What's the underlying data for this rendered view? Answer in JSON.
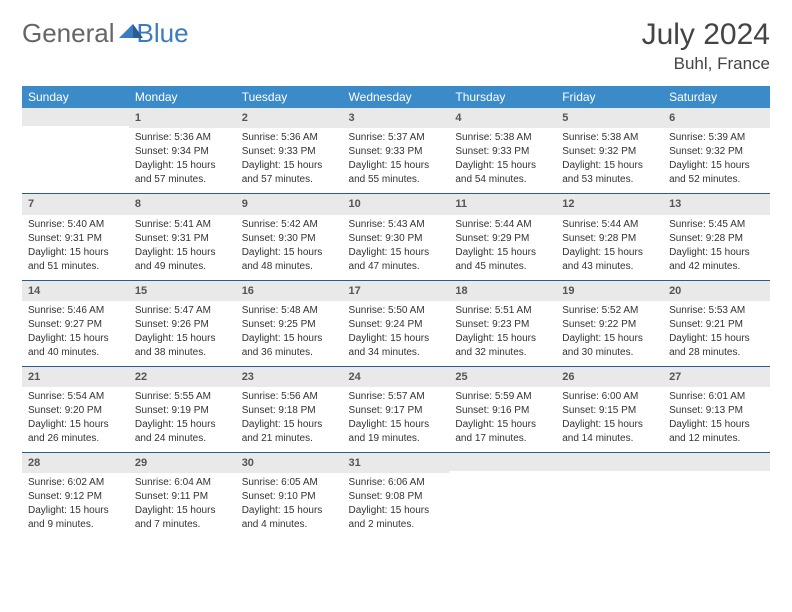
{
  "brand": {
    "part1": "General",
    "part2": "Blue"
  },
  "title": "July 2024",
  "location": "Buhl, France",
  "colors": {
    "header_bg": "#3b8bc9",
    "header_text": "#ffffff",
    "daynum_bg": "#e9e9e9",
    "row_border": "#2a5c91",
    "brand_blue": "#3b7bbf"
  },
  "weekdays": [
    "Sunday",
    "Monday",
    "Tuesday",
    "Wednesday",
    "Thursday",
    "Friday",
    "Saturday"
  ],
  "weeks": [
    [
      null,
      {
        "n": "1",
        "sunrise": "Sunrise: 5:36 AM",
        "sunset": "Sunset: 9:34 PM",
        "day1": "Daylight: 15 hours",
        "day2": "and 57 minutes."
      },
      {
        "n": "2",
        "sunrise": "Sunrise: 5:36 AM",
        "sunset": "Sunset: 9:33 PM",
        "day1": "Daylight: 15 hours",
        "day2": "and 57 minutes."
      },
      {
        "n": "3",
        "sunrise": "Sunrise: 5:37 AM",
        "sunset": "Sunset: 9:33 PM",
        "day1": "Daylight: 15 hours",
        "day2": "and 55 minutes."
      },
      {
        "n": "4",
        "sunrise": "Sunrise: 5:38 AM",
        "sunset": "Sunset: 9:33 PM",
        "day1": "Daylight: 15 hours",
        "day2": "and 54 minutes."
      },
      {
        "n": "5",
        "sunrise": "Sunrise: 5:38 AM",
        "sunset": "Sunset: 9:32 PM",
        "day1": "Daylight: 15 hours",
        "day2": "and 53 minutes."
      },
      {
        "n": "6",
        "sunrise": "Sunrise: 5:39 AM",
        "sunset": "Sunset: 9:32 PM",
        "day1": "Daylight: 15 hours",
        "day2": "and 52 minutes."
      }
    ],
    [
      {
        "n": "7",
        "sunrise": "Sunrise: 5:40 AM",
        "sunset": "Sunset: 9:31 PM",
        "day1": "Daylight: 15 hours",
        "day2": "and 51 minutes."
      },
      {
        "n": "8",
        "sunrise": "Sunrise: 5:41 AM",
        "sunset": "Sunset: 9:31 PM",
        "day1": "Daylight: 15 hours",
        "day2": "and 49 minutes."
      },
      {
        "n": "9",
        "sunrise": "Sunrise: 5:42 AM",
        "sunset": "Sunset: 9:30 PM",
        "day1": "Daylight: 15 hours",
        "day2": "and 48 minutes."
      },
      {
        "n": "10",
        "sunrise": "Sunrise: 5:43 AM",
        "sunset": "Sunset: 9:30 PM",
        "day1": "Daylight: 15 hours",
        "day2": "and 47 minutes."
      },
      {
        "n": "11",
        "sunrise": "Sunrise: 5:44 AM",
        "sunset": "Sunset: 9:29 PM",
        "day1": "Daylight: 15 hours",
        "day2": "and 45 minutes."
      },
      {
        "n": "12",
        "sunrise": "Sunrise: 5:44 AM",
        "sunset": "Sunset: 9:28 PM",
        "day1": "Daylight: 15 hours",
        "day2": "and 43 minutes."
      },
      {
        "n": "13",
        "sunrise": "Sunrise: 5:45 AM",
        "sunset": "Sunset: 9:28 PM",
        "day1": "Daylight: 15 hours",
        "day2": "and 42 minutes."
      }
    ],
    [
      {
        "n": "14",
        "sunrise": "Sunrise: 5:46 AM",
        "sunset": "Sunset: 9:27 PM",
        "day1": "Daylight: 15 hours",
        "day2": "and 40 minutes."
      },
      {
        "n": "15",
        "sunrise": "Sunrise: 5:47 AM",
        "sunset": "Sunset: 9:26 PM",
        "day1": "Daylight: 15 hours",
        "day2": "and 38 minutes."
      },
      {
        "n": "16",
        "sunrise": "Sunrise: 5:48 AM",
        "sunset": "Sunset: 9:25 PM",
        "day1": "Daylight: 15 hours",
        "day2": "and 36 minutes."
      },
      {
        "n": "17",
        "sunrise": "Sunrise: 5:50 AM",
        "sunset": "Sunset: 9:24 PM",
        "day1": "Daylight: 15 hours",
        "day2": "and 34 minutes."
      },
      {
        "n": "18",
        "sunrise": "Sunrise: 5:51 AM",
        "sunset": "Sunset: 9:23 PM",
        "day1": "Daylight: 15 hours",
        "day2": "and 32 minutes."
      },
      {
        "n": "19",
        "sunrise": "Sunrise: 5:52 AM",
        "sunset": "Sunset: 9:22 PM",
        "day1": "Daylight: 15 hours",
        "day2": "and 30 minutes."
      },
      {
        "n": "20",
        "sunrise": "Sunrise: 5:53 AM",
        "sunset": "Sunset: 9:21 PM",
        "day1": "Daylight: 15 hours",
        "day2": "and 28 minutes."
      }
    ],
    [
      {
        "n": "21",
        "sunrise": "Sunrise: 5:54 AM",
        "sunset": "Sunset: 9:20 PM",
        "day1": "Daylight: 15 hours",
        "day2": "and 26 minutes."
      },
      {
        "n": "22",
        "sunrise": "Sunrise: 5:55 AM",
        "sunset": "Sunset: 9:19 PM",
        "day1": "Daylight: 15 hours",
        "day2": "and 24 minutes."
      },
      {
        "n": "23",
        "sunrise": "Sunrise: 5:56 AM",
        "sunset": "Sunset: 9:18 PM",
        "day1": "Daylight: 15 hours",
        "day2": "and 21 minutes."
      },
      {
        "n": "24",
        "sunrise": "Sunrise: 5:57 AM",
        "sunset": "Sunset: 9:17 PM",
        "day1": "Daylight: 15 hours",
        "day2": "and 19 minutes."
      },
      {
        "n": "25",
        "sunrise": "Sunrise: 5:59 AM",
        "sunset": "Sunset: 9:16 PM",
        "day1": "Daylight: 15 hours",
        "day2": "and 17 minutes."
      },
      {
        "n": "26",
        "sunrise": "Sunrise: 6:00 AM",
        "sunset": "Sunset: 9:15 PM",
        "day1": "Daylight: 15 hours",
        "day2": "and 14 minutes."
      },
      {
        "n": "27",
        "sunrise": "Sunrise: 6:01 AM",
        "sunset": "Sunset: 9:13 PM",
        "day1": "Daylight: 15 hours",
        "day2": "and 12 minutes."
      }
    ],
    [
      {
        "n": "28",
        "sunrise": "Sunrise: 6:02 AM",
        "sunset": "Sunset: 9:12 PM",
        "day1": "Daylight: 15 hours",
        "day2": "and 9 minutes."
      },
      {
        "n": "29",
        "sunrise": "Sunrise: 6:04 AM",
        "sunset": "Sunset: 9:11 PM",
        "day1": "Daylight: 15 hours",
        "day2": "and 7 minutes."
      },
      {
        "n": "30",
        "sunrise": "Sunrise: 6:05 AM",
        "sunset": "Sunset: 9:10 PM",
        "day1": "Daylight: 15 hours",
        "day2": "and 4 minutes."
      },
      {
        "n": "31",
        "sunrise": "Sunrise: 6:06 AM",
        "sunset": "Sunset: 9:08 PM",
        "day1": "Daylight: 15 hours",
        "day2": "and 2 minutes."
      },
      null,
      null,
      null
    ]
  ]
}
